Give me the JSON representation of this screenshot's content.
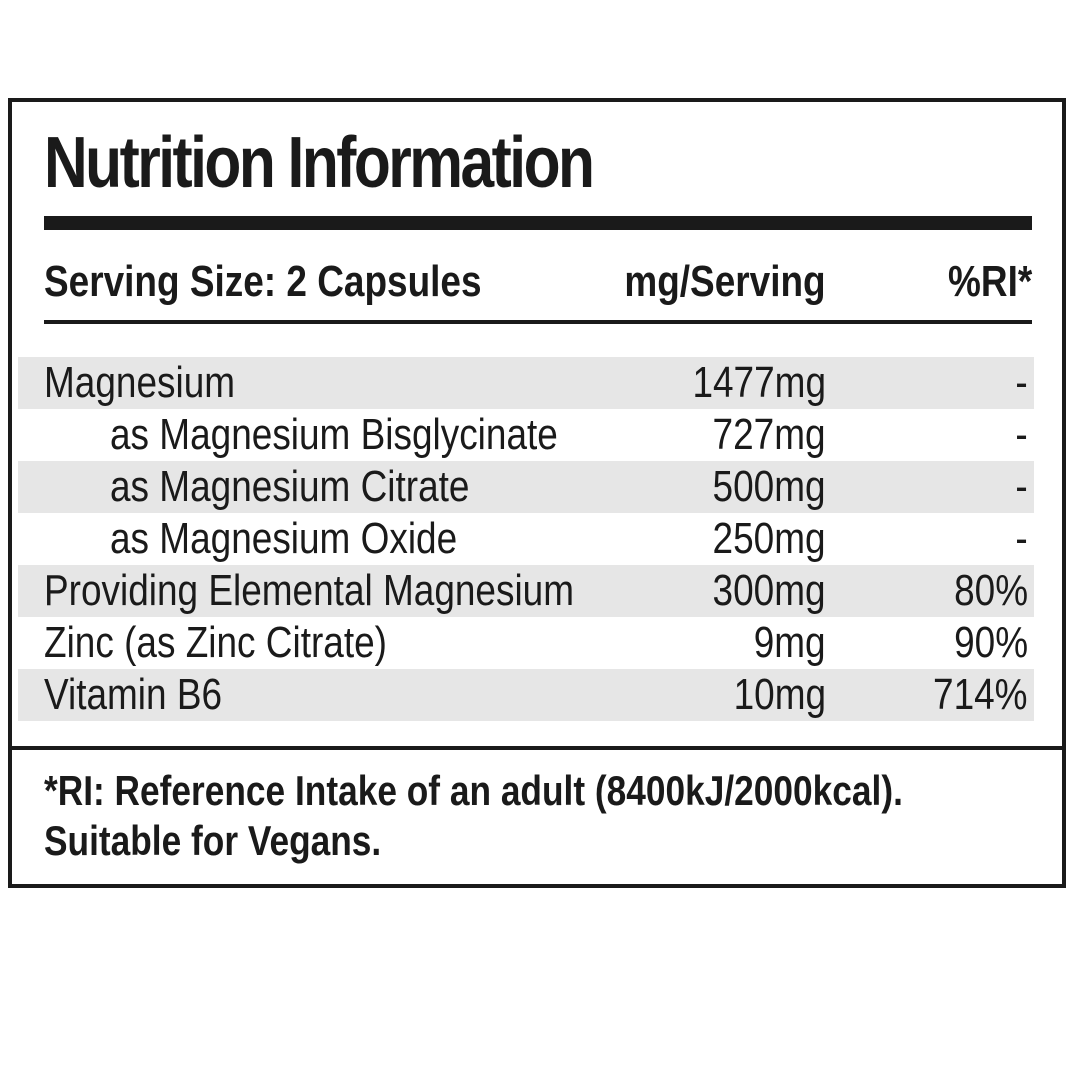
{
  "title": "Nutrition Information",
  "header": {
    "serving_size": "Serving Size: 2 Capsules",
    "amount_col": "mg/Serving",
    "ri_col": "%RI*"
  },
  "rows": [
    {
      "name": "Magnesium",
      "amount": "1477mg",
      "ri": "-"
    },
    {
      "name": "as Magnesium Bisglycinate",
      "amount": "727mg",
      "ri": "-"
    },
    {
      "name": "as Magnesium Citrate",
      "amount": "500mg",
      "ri": "-"
    },
    {
      "name": "as Magnesium Oxide",
      "amount": "250mg",
      "ri": "-"
    },
    {
      "name": "Providing Elemental Magnesium",
      "amount": "300mg",
      "ri": "80%"
    },
    {
      "name": "Zinc (as Zinc Citrate)",
      "amount": "9mg",
      "ri": "90%"
    },
    {
      "name": "Vitamin B6",
      "amount": "10mg",
      "ri": "714%"
    }
  ],
  "footer": {
    "line1": "*RI: Reference Intake of an adult (8400kJ/2000kcal).",
    "line2": "Suitable for Vegans."
  },
  "colors": {
    "text": "#1a1a1a",
    "row_shade": "#e6e6e6",
    "background": "#ffffff"
  }
}
